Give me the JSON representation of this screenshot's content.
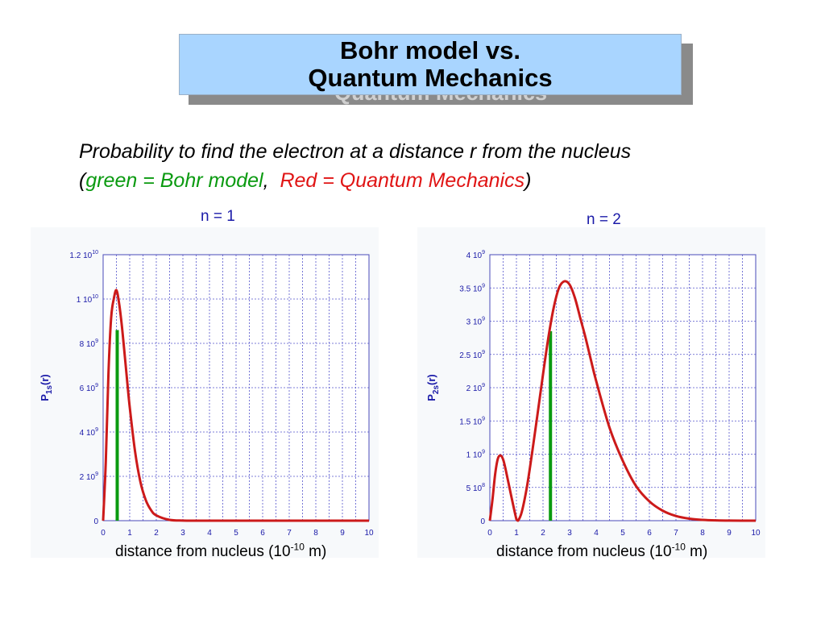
{
  "slide": {
    "title_line1": "Bohr model vs.",
    "title_line2": "Quantum Mechanics",
    "subtitle_line1": "Probability to find the electron at a distance r from the nucleus",
    "subtitle_paren_open": "(",
    "subtitle_green": "green = Bohr model",
    "subtitle_sep": ",  ",
    "subtitle_red": "Red = Quantum Mechanics",
    "subtitle_paren_close": ")"
  },
  "colors": {
    "bohr": "#0a9a10",
    "quantum": "#cc1a1a",
    "axis_label": "#1a1aa8",
    "grid": "#5555cc"
  },
  "chart_data": [
    {
      "type": "line",
      "title": "n = 1",
      "xlabel_text": "distance from nucleus (10",
      "xlabel_exp": "-10",
      "xlabel_unit": " m)",
      "ylabel_main": "P",
      "ylabel_sub": "1s",
      "ylabel_paren": "(r)",
      "xlim": [
        0,
        10
      ],
      "ylim": [
        0,
        12000000000.0
      ],
      "x_ticks": [
        "0",
        "1",
        "2",
        "3",
        "4",
        "5",
        "6",
        "7",
        "8",
        "9",
        "10"
      ],
      "y_ticks": [
        {
          "value": 0,
          "base": "0",
          "exp": ""
        },
        {
          "value": 2000000000.0,
          "base": "2 10",
          "exp": "9"
        },
        {
          "value": 4000000000.0,
          "base": "4 10",
          "exp": "9"
        },
        {
          "value": 6000000000.0,
          "base": "6 10",
          "exp": "9"
        },
        {
          "value": 8000000000.0,
          "base": "8 10",
          "exp": "9"
        },
        {
          "value": 10000000000.0,
          "base": "1 10",
          "exp": "10"
        },
        {
          "value": 12000000000.0,
          "base": "1.2 10",
          "exp": "10"
        }
      ],
      "grid": true,
      "series": [
        {
          "x": [
            0,
            0.1,
            0.2,
            0.3,
            0.4,
            0.5,
            0.6,
            0.7,
            0.8,
            0.9,
            1.0,
            1.2,
            1.4,
            1.6,
            1.8,
            2.0,
            2.5,
            3.0,
            3.5,
            4.0,
            5.0,
            10.0
          ],
          "y": [
            0,
            2650000000.0,
            6620000000.0,
            9130000000.0,
            10000000000.0,
            10400000000.0,
            9810000000.0,
            8840000000.0,
            7620000000.0,
            6350000000.0,
            5130000000.0,
            3130000000.0,
            1760000000.0,
            940000000.0,
            480000000.0,
            240000000.0,
            36000000.0,
            5000000.0,
            650000.0,
            80000.0,
            1000.0,
            0
          ]
        }
      ],
      "bohr_line": {
        "x": 0.53,
        "y": 8600000000.0
      }
    },
    {
      "type": "line",
      "title": "n = 2",
      "xlabel_text": "distance from nucleus (10",
      "xlabel_exp": "-10",
      "xlabel_unit": " m)",
      "ylabel_main": "P",
      "ylabel_sub": "2s",
      "ylabel_paren": "(r)",
      "xlim": [
        0,
        10
      ],
      "ylim": [
        0,
        4000000000.0
      ],
      "x_ticks": [
        "0",
        "1",
        "2",
        "3",
        "4",
        "5",
        "6",
        "7",
        "8",
        "9",
        "10"
      ],
      "y_ticks": [
        {
          "value": 0,
          "base": "0",
          "exp": ""
        },
        {
          "value": 500000000.0,
          "base": "5 10",
          "exp": "8"
        },
        {
          "value": 1000000000.0,
          "base": "1 10",
          "exp": "9"
        },
        {
          "value": 1500000000.0,
          "base": "1.5 10",
          "exp": "9"
        },
        {
          "value": 2000000000.0,
          "base": "2 10",
          "exp": "9"
        },
        {
          "value": 2500000000.0,
          "base": "2.5 10",
          "exp": "9"
        },
        {
          "value": 3000000000.0,
          "base": "3 10",
          "exp": "9"
        },
        {
          "value": 3500000000.0,
          "base": "3.5 10",
          "exp": "9"
        },
        {
          "value": 4000000000.0,
          "base": "4 10",
          "exp": "9"
        }
      ],
      "grid": true,
      "series": [
        {
          "x": [
            0,
            0.1,
            0.2,
            0.3,
            0.4,
            0.5,
            0.6,
            0.8,
            1.0,
            1.06,
            1.2,
            1.4,
            1.6,
            1.8,
            2.0,
            2.2,
            2.4,
            2.6,
            2.8,
            3.0,
            3.2,
            3.4,
            3.6,
            3.8,
            4.0,
            4.5,
            5.0,
            5.5,
            6.0,
            6.5,
            7.0,
            7.5,
            8.0,
            8.5,
            9.0,
            10.0
          ],
          "y": [
            0,
            320000000.0,
            700000000.0,
            930000000.0,
            980000000.0,
            920000000.0,
            760000000.0,
            380000000.0,
            20000000.0,
            0,
            130000000.0,
            520000000.0,
            1050000000.0,
            1620000000.0,
            2200000000.0,
            2750000000.0,
            3200000000.0,
            3500000000.0,
            3600000000.0,
            3550000000.0,
            3350000000.0,
            3050000000.0,
            2750000000.0,
            2420000000.0,
            2100000000.0,
            1400000000.0,
            900000000.0,
            520000000.0,
            290000000.0,
            150000000.0,
            70000000.0,
            30000000.0,
            12000000.0,
            4000000.0,
            1000000.0,
            0
          ]
        }
      ],
      "bohr_line": {
        "x": 2.28,
        "y": 2850000000.0
      }
    }
  ]
}
